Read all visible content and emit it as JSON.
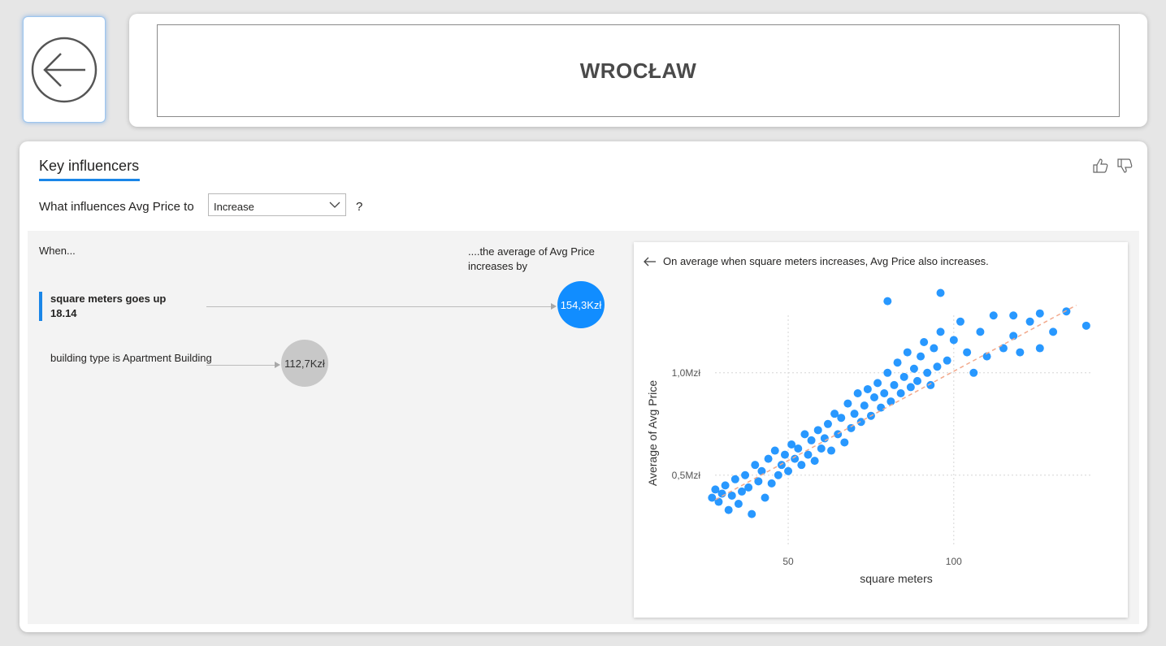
{
  "header": {
    "title": "WROCŁAW"
  },
  "key_influencers": {
    "title": "Key influencers",
    "question_prefix": "What influences Avg Price to",
    "dropdown_value": "Increase",
    "question_suffix": "?",
    "when_label": "When...",
    "avg_label": "....the average of Avg Price increases by",
    "influencers": [
      {
        "line1": "square meters goes up",
        "line2": "18.14",
        "value": "154,3Kzł",
        "color": "#118dff"
      },
      {
        "line1": "building type is Apartment Building",
        "value": "112,7Kzł",
        "color": "#c8c8c8"
      }
    ],
    "detail_message": "On average when square meters increases, Avg Price also increases."
  },
  "chart_data": {
    "type": "scatter",
    "xlabel": "square meters",
    "ylabel": "Average of Avg Price",
    "x_ticks": [
      {
        "value": 50,
        "label": "50"
      },
      {
        "value": 100,
        "label": "100"
      }
    ],
    "y_ticks": [
      {
        "value": 0.5,
        "label": "0,5Mzł"
      },
      {
        "value": 1.0,
        "label": "1,0Mzł"
      }
    ],
    "xlim": [
      23,
      142
    ],
    "ylim": [
      0.13,
      1.4
    ],
    "point_color": "#118dff",
    "trend_color": "#f2a98c",
    "trend": {
      "x": [
        28,
        137
      ],
      "y": [
        0.38,
        1.33
      ]
    },
    "points": [
      [
        27,
        0.39
      ],
      [
        28,
        0.43
      ],
      [
        29,
        0.37
      ],
      [
        30,
        0.41
      ],
      [
        31,
        0.45
      ],
      [
        32,
        0.33
      ],
      [
        33,
        0.4
      ],
      [
        34,
        0.48
      ],
      [
        35,
        0.36
      ],
      [
        36,
        0.42
      ],
      [
        37,
        0.5
      ],
      [
        38,
        0.44
      ],
      [
        39,
        0.31
      ],
      [
        40,
        0.55
      ],
      [
        41,
        0.47
      ],
      [
        42,
        0.52
      ],
      [
        43,
        0.39
      ],
      [
        44,
        0.58
      ],
      [
        45,
        0.46
      ],
      [
        46,
        0.62
      ],
      [
        47,
        0.5
      ],
      [
        48,
        0.55
      ],
      [
        49,
        0.6
      ],
      [
        50,
        0.52
      ],
      [
        51,
        0.65
      ],
      [
        52,
        0.58
      ],
      [
        53,
        0.63
      ],
      [
        54,
        0.55
      ],
      [
        55,
        0.7
      ],
      [
        56,
        0.6
      ],
      [
        57,
        0.67
      ],
      [
        58,
        0.57
      ],
      [
        59,
        0.72
      ],
      [
        60,
        0.63
      ],
      [
        61,
        0.68
      ],
      [
        62,
        0.75
      ],
      [
        63,
        0.62
      ],
      [
        64,
        0.8
      ],
      [
        65,
        0.7
      ],
      [
        66,
        0.78
      ],
      [
        67,
        0.66
      ],
      [
        68,
        0.85
      ],
      [
        69,
        0.73
      ],
      [
        70,
        0.8
      ],
      [
        71,
        0.9
      ],
      [
        72,
        0.76
      ],
      [
        73,
        0.84
      ],
      [
        74,
        0.92
      ],
      [
        75,
        0.79
      ],
      [
        76,
        0.88
      ],
      [
        77,
        0.95
      ],
      [
        78,
        0.83
      ],
      [
        79,
        0.9
      ],
      [
        80,
        1.0
      ],
      [
        81,
        0.86
      ],
      [
        82,
        0.94
      ],
      [
        83,
        1.05
      ],
      [
        84,
        0.9
      ],
      [
        85,
        0.98
      ],
      [
        86,
        1.1
      ],
      [
        87,
        0.93
      ],
      [
        88,
        1.02
      ],
      [
        89,
        0.96
      ],
      [
        90,
        1.08
      ],
      [
        91,
        1.15
      ],
      [
        92,
        1.0
      ],
      [
        93,
        0.94
      ],
      [
        94,
        1.12
      ],
      [
        95,
        1.03
      ],
      [
        96,
        1.2
      ],
      [
        98,
        1.06
      ],
      [
        100,
        1.16
      ],
      [
        102,
        1.25
      ],
      [
        104,
        1.1
      ],
      [
        106,
        1.0
      ],
      [
        108,
        1.2
      ],
      [
        110,
        1.08
      ],
      [
        112,
        1.28
      ],
      [
        115,
        1.12
      ],
      [
        118,
        1.18
      ],
      [
        120,
        1.1
      ],
      [
        123,
        1.25
      ],
      [
        126,
        1.12
      ],
      [
        130,
        1.2
      ],
      [
        134,
        1.3
      ],
      [
        140,
        1.23
      ],
      [
        126,
        1.29
      ],
      [
        118,
        1.28
      ],
      [
        96,
        1.39
      ],
      [
        80,
        1.35
      ]
    ]
  }
}
